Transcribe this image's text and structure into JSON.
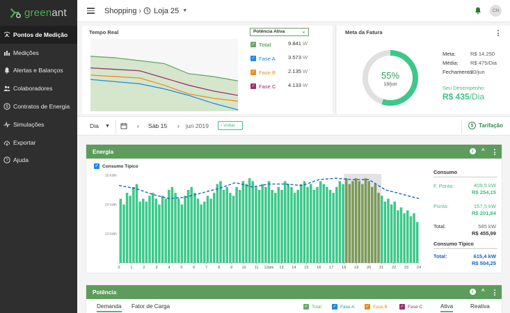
{
  "logo": {
    "pre": "green",
    "post": "ant"
  },
  "sidebar": {
    "items": [
      {
        "label": "Pontos de Medição",
        "icon": "antenna-icon",
        "active": true
      },
      {
        "label": "Medições",
        "icon": "bar-chart-icon"
      },
      {
        "label": "Alertas e Balanços",
        "icon": "bell-icon"
      },
      {
        "label": "Colaboradores",
        "icon": "people-icon"
      },
      {
        "label": "Contratos de Energia",
        "icon": "dollar-circle-icon"
      },
      {
        "label": "Simulações",
        "icon": "pulse-icon"
      },
      {
        "label": "Exportar",
        "icon": "cloud-download-icon"
      },
      {
        "label": "Ajuda",
        "icon": "help-circle-icon"
      }
    ]
  },
  "topbar": {
    "crumb1": "Shopping",
    "crumb2": "Loja 25",
    "avatar": "CN"
  },
  "realtime": {
    "title": "Tempo Real",
    "select": "Potência Ativa",
    "legend": [
      {
        "label": "Total",
        "value": "9.841",
        "unit": "W",
        "color": "#6aa86a"
      },
      {
        "label": "Fase A",
        "value": "3.573",
        "unit": "W",
        "color": "#1e88e5"
      },
      {
        "label": "Fase B",
        "value": "2.135",
        "unit": "W",
        "color": "#ef8c1a"
      },
      {
        "label": "Fase C",
        "value": "4.133",
        "unit": "W",
        "color": "#9c2f6a"
      }
    ]
  },
  "meta": {
    "title": "Meta da Fatura",
    "percent": "55%",
    "percent_value": 55,
    "date": "18/jun",
    "rows": [
      {
        "label": "Meta:",
        "value": "R$ 14.250"
      },
      {
        "label": "Média:",
        "value": "R$ 475/Dia"
      },
      {
        "label": "Fechamento:",
        "value": "30/jun"
      }
    ],
    "desempenho_label": "Seu Desempenho:",
    "desempenho_value": "R$ 435",
    "desempenho_unit": "/Dia"
  },
  "datebar": {
    "period": "Dia",
    "day": "Sáb 15",
    "month": "jun 2019",
    "back": "Voltar",
    "tarifacao": "Tarifação"
  },
  "energy": {
    "title": "Energia",
    "consumo_tipico_chk": "Consumo Típico",
    "side": {
      "consumo_title": "Consumo",
      "fponta_label": "F. Ponta:",
      "fponta_kw": "409,5 kW",
      "fponta_rs": "R$ 254,15",
      "ponta_label": "Ponta:",
      "ponta_kw": "157,5 kW",
      "ponta_rs": "R$ 201,84",
      "total_label": "Total:",
      "total_kw": "585 kW",
      "total_rs": "R$ 455,99",
      "tipico_title": "Consumo Típico",
      "tipico_label": "Total:",
      "tipico_kw": "615,4 kW",
      "tipico_rs": "R$ 504,25"
    }
  },
  "potencia": {
    "title": "Potência",
    "tabs": [
      "Demanda",
      "Fator de Carga"
    ],
    "legend": [
      {
        "label": "Total",
        "color": "#6aa86a"
      },
      {
        "label": "Fase A",
        "color": "#1e88e5"
      },
      {
        "label": "Fase B",
        "color": "#ef8c1a"
      },
      {
        "label": "Fase C",
        "color": "#9c2f6a"
      }
    ],
    "modes": [
      "Ativa",
      "Reativa"
    ]
  },
  "chart_data": [
    {
      "type": "line",
      "title": "Tempo Real",
      "x": [
        0,
        1,
        2,
        3,
        4,
        5,
        6
      ],
      "ylim": [
        0,
        10
      ],
      "series": [
        {
          "name": "Total",
          "color": "#6aa86a",
          "values": [
            7.6,
            7.4,
            7.0,
            6.6,
            5.2,
            4.8,
            4.2
          ]
        },
        {
          "name": "Fase C",
          "color": "#9c2f6a",
          "values": [
            6.0,
            5.8,
            5.6,
            4.6,
            3.6,
            2.8,
            2.2
          ]
        },
        {
          "name": "Fase B",
          "color": "#ef8c1a",
          "values": [
            5.0,
            4.8,
            4.6,
            3.6,
            2.4,
            1.8,
            1.4
          ]
        },
        {
          "name": "Fase A",
          "color": "#1e88e5",
          "values": [
            4.4,
            4.1,
            3.8,
            3.1,
            2.2,
            1.1,
            0.2
          ]
        }
      ]
    },
    {
      "type": "bar",
      "y_tick_labels": [
        "10 kWh",
        "20 kWh",
        "30 kWh"
      ],
      "ylim": [
        0,
        30
      ],
      "x_tick_labels": [
        "0",
        "1",
        "2",
        "3",
        "4",
        "5",
        "6",
        "7",
        "8",
        "9",
        "10",
        "11",
        "12pm",
        "13",
        "14",
        "15",
        "16",
        "17",
        "18",
        "19",
        "20",
        "21",
        "22",
        "23",
        "24"
      ],
      "x_ticks": [
        0,
        1,
        2,
        3,
        4,
        5,
        6,
        7,
        8,
        9,
        10,
        11,
        12,
        13,
        14,
        15,
        16,
        17,
        18,
        19,
        20,
        21,
        22,
        23,
        24
      ],
      "peak_hours": [
        18,
        21
      ],
      "bar_color": "#3cc88a",
      "peak_bar_color": "#7a9a55",
      "values": [
        22,
        20,
        24,
        23,
        26,
        27,
        21,
        22,
        21,
        23,
        24,
        22,
        20,
        23,
        22,
        25,
        26,
        24,
        22,
        20,
        23,
        25,
        26,
        24,
        22,
        20,
        21,
        23,
        22,
        24,
        27,
        28,
        25,
        26,
        24,
        23,
        26,
        25,
        28,
        27,
        29,
        28,
        26,
        25,
        27,
        26,
        28,
        25,
        24,
        26,
        25,
        28,
        27,
        26,
        24,
        25,
        27,
        28,
        26,
        27,
        25,
        26,
        28,
        27,
        26,
        25,
        24,
        26,
        28,
        27,
        29,
        27,
        28,
        29,
        28,
        27,
        29,
        28,
        26,
        27,
        24,
        23,
        21,
        22,
        20,
        21,
        18,
        19,
        17,
        18,
        16,
        17,
        14
      ],
      "typical_line": [
        26.5,
        25.5,
        23.5,
        22.0,
        22.5,
        24.0,
        25.5,
        27.5,
        26.0,
        27.0,
        27.0,
        26.5,
        28.5,
        29.0,
        28.5,
        28.5,
        25.0,
        23.5,
        22.0
      ],
      "typical_color": "#1565c0"
    }
  ]
}
